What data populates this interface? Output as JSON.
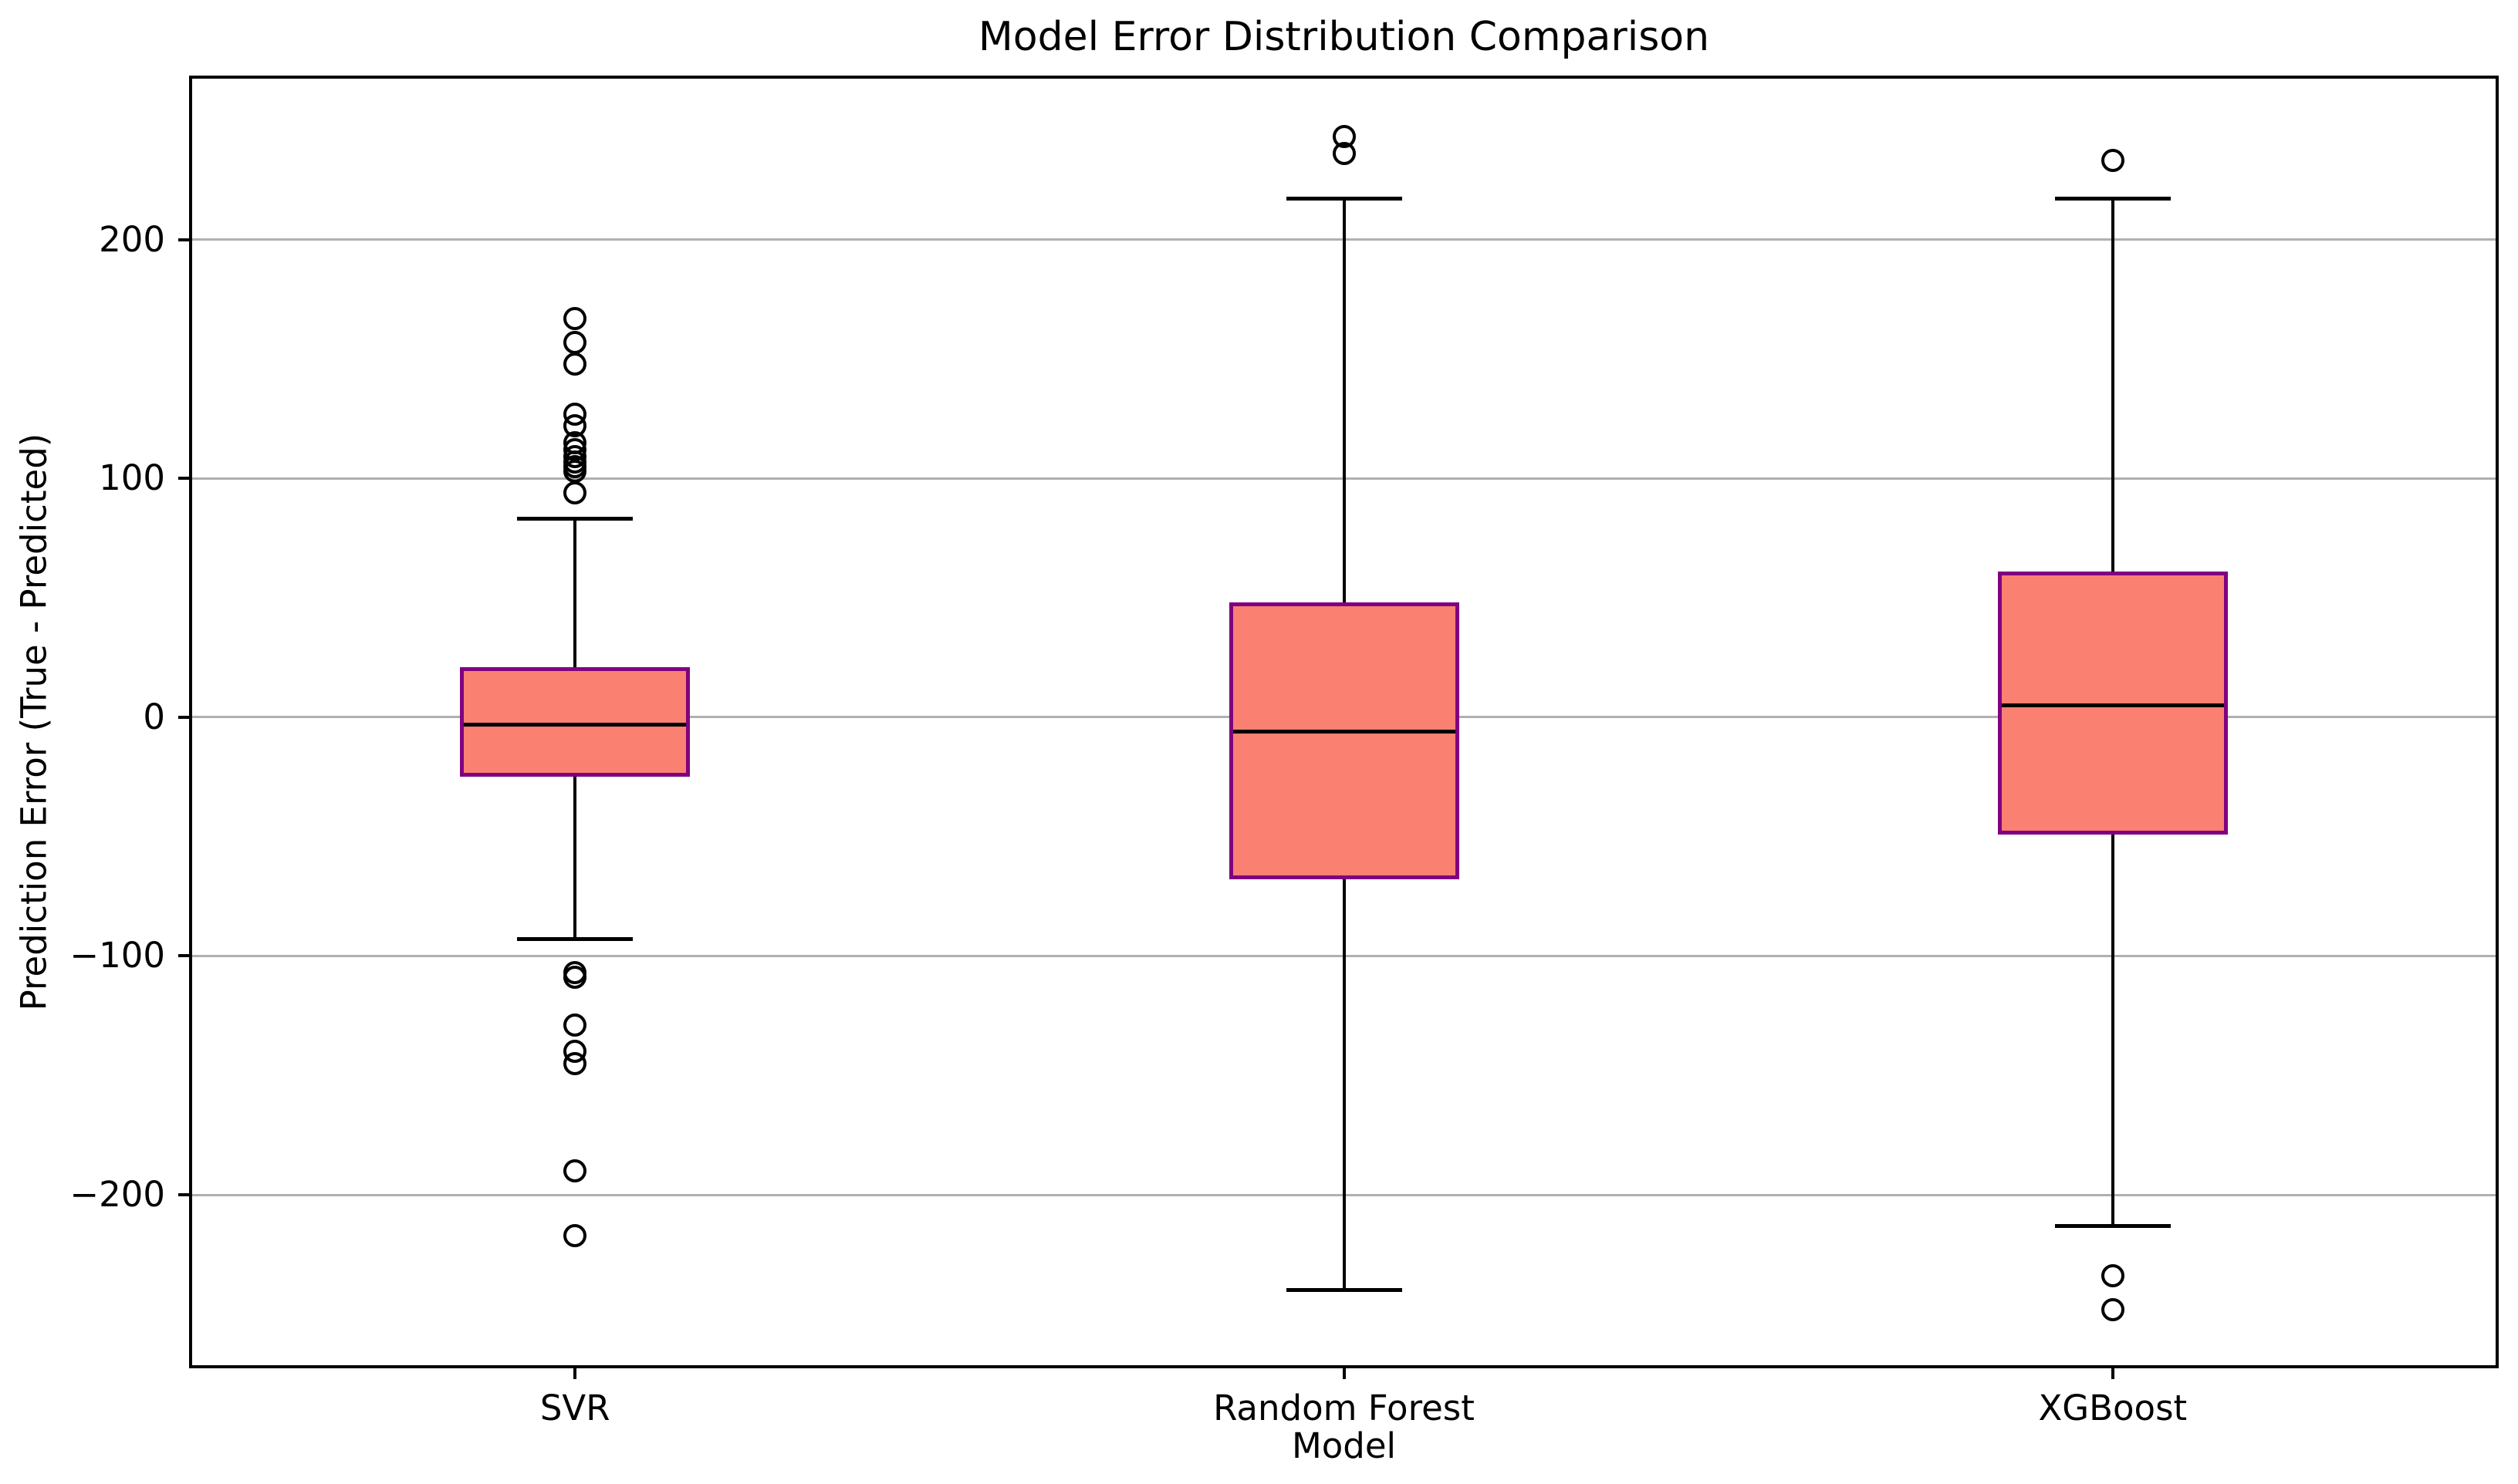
{
  "chart_data": {
    "type": "boxplot",
    "title": "Model Error Distribution Comparison",
    "xlabel": "Model",
    "ylabel": "Prediction Error (True - Predicted)",
    "categories": [
      "SVR",
      "Random Forest",
      "XGBoost"
    ],
    "ylim": [
      -272,
      268
    ],
    "xlim": [
      0.5,
      3.5
    ],
    "grid": true,
    "legend_position": "none",
    "yticks": [
      {
        "value": 200,
        "label": "200"
      },
      {
        "value": 100,
        "label": "100"
      },
      {
        "value": 0,
        "label": "0"
      },
      {
        "value": -100,
        "label": "−100"
      },
      {
        "value": -200,
        "label": "−200"
      }
    ],
    "series": [
      {
        "name": "SVR",
        "position": 1,
        "whisker_low": -93,
        "q1": -25,
        "median": -3,
        "q3": 21,
        "whisker_high": 83,
        "outliers": [
          167,
          157,
          148,
          127,
          122,
          115,
          112,
          109,
          107,
          105,
          103,
          94,
          -107,
          -109,
          -129,
          -140,
          -145,
          -190,
          -217
        ]
      },
      {
        "name": "Random Forest",
        "position": 2,
        "whisker_low": -240,
        "q1": -68,
        "median": -6,
        "q3": 48,
        "whisker_high": 217,
        "outliers": [
          243,
          236
        ]
      },
      {
        "name": "XGBoost",
        "position": 3,
        "whisker_low": -213,
        "q1": -49,
        "median": 5,
        "q3": 61,
        "whisker_high": 217,
        "outliers": [
          233,
          -234,
          -248
        ]
      }
    ],
    "colors": {
      "box_fill": "#FA8072",
      "box_edge": "#800080",
      "median": "#000000",
      "whisker": "#000000",
      "cap": "#000000",
      "outlier_edge": "#000000",
      "grid": "#B0B0B0",
      "axis": "#000000",
      "text": "#000000",
      "background": "#FFFFFF"
    }
  }
}
